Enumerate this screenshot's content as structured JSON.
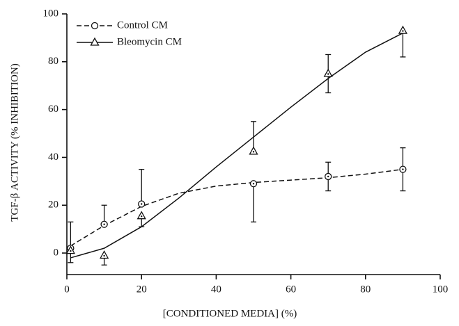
{
  "chart_data": {
    "type": "line",
    "xlabel": "[CONDITIONED MEDIA] (%)",
    "ylabel": "TGF-β ACTIVITY (% INHIBITION)",
    "xlim": [
      0,
      100
    ],
    "ylim": [
      -9,
      100
    ],
    "xticks": [
      0,
      20,
      40,
      60,
      80,
      100
    ],
    "yticks": [
      0,
      20,
      40,
      60,
      80,
      100
    ],
    "legend": "top-left",
    "series": [
      {
        "name": "Control CM",
        "color": "#111111",
        "marker": "circle",
        "dash": true,
        "x": [
          1,
          10,
          20,
          50,
          70,
          90
        ],
        "values": [
          2,
          12,
          20.5,
          29,
          32,
          35
        ],
        "err_upper": [
          13,
          20,
          35,
          null,
          38,
          44
        ],
        "err_lower": [
          null,
          null,
          null,
          13,
          26,
          26
        ],
        "fit_x": [
          1,
          10,
          20,
          30,
          40,
          50,
          60,
          70,
          80,
          90
        ],
        "fit_y": [
          3,
          11.5,
          19.5,
          25,
          28,
          29.5,
          30.5,
          31.5,
          33,
          35
        ]
      },
      {
        "name": "Bleomycin CM",
        "color": "#111111",
        "marker": "triangle",
        "dash": false,
        "x": [
          1,
          10,
          20,
          50,
          70,
          90
        ],
        "values": [
          1,
          -1,
          15.5,
          42.5,
          75,
          93
        ],
        "err_upper": [
          null,
          null,
          null,
          55,
          83,
          null
        ],
        "err_lower": [
          -4,
          -5,
          11,
          null,
          67,
          82
        ],
        "fit_x": [
          1,
          10,
          20,
          30,
          40,
          50,
          60,
          70,
          80,
          90
        ],
        "fit_y": [
          -2,
          2,
          11,
          23,
          36,
          48.5,
          61,
          73,
          84,
          92
        ]
      }
    ]
  }
}
